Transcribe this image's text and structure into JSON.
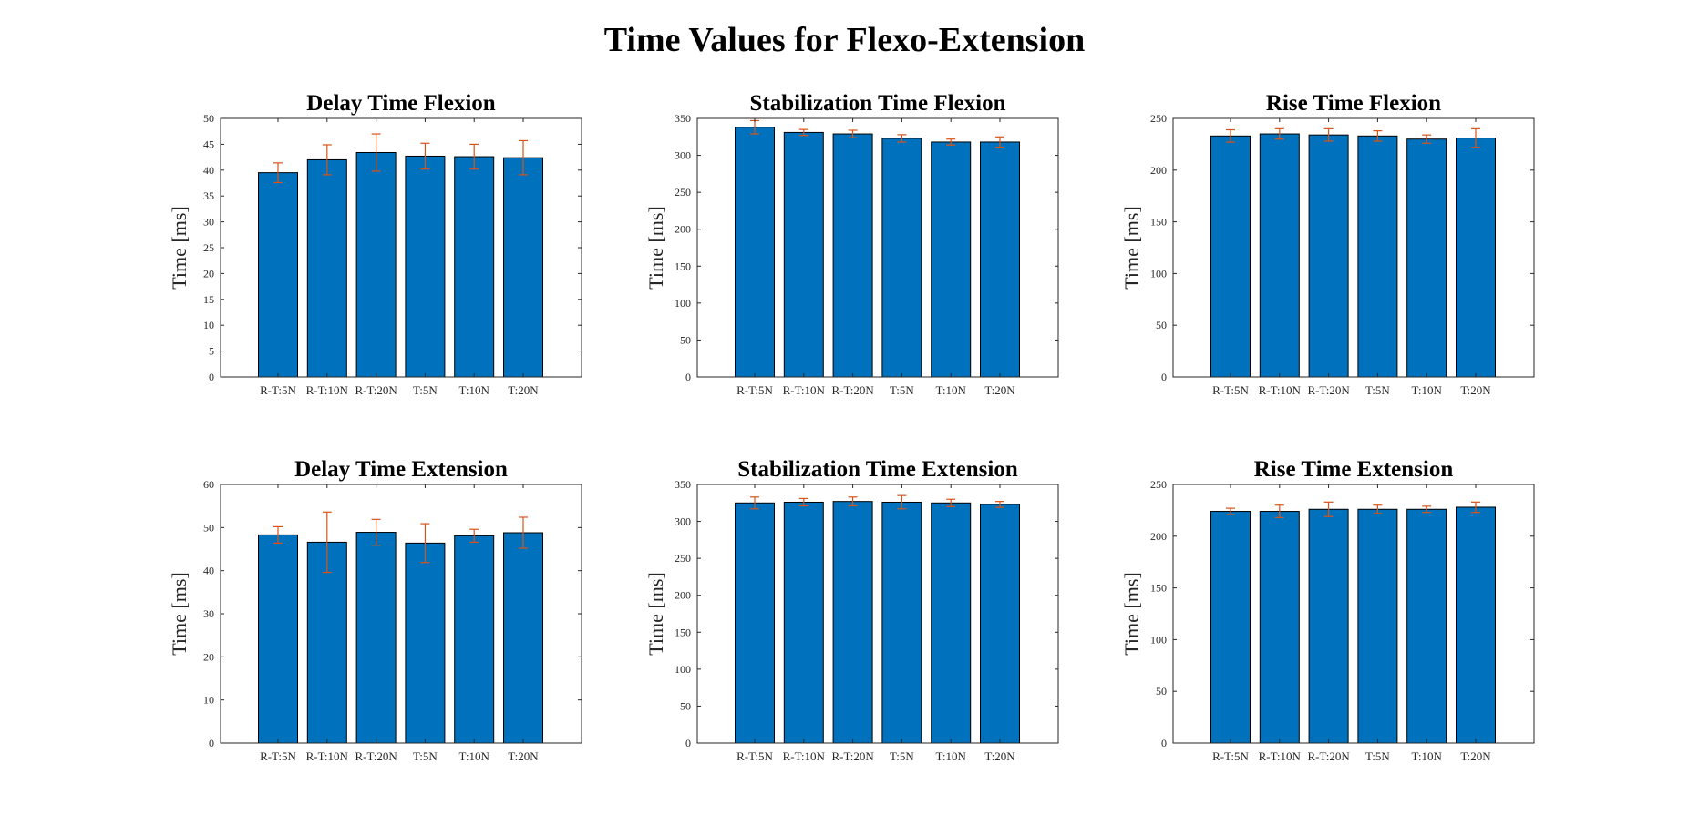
{
  "title": "Time Values for Flexo-Extension",
  "colors": {
    "bar": "#0072BD",
    "error_bar": "#D95319",
    "axis": "#262626"
  },
  "chart_data": [
    {
      "type": "bar",
      "title": "Delay Time Flexion",
      "ylabel": "Time [ms]",
      "categories": [
        "R-T:5N",
        "R-T:10N",
        "R-T:20N",
        "T:5N",
        "T:10N",
        "T:20N"
      ],
      "values": [
        39.5,
        42.0,
        43.4,
        42.7,
        42.6,
        42.4
      ],
      "error": [
        1.9,
        2.9,
        3.6,
        2.5,
        2.4,
        3.3
      ],
      "ylim": [
        0,
        50
      ],
      "yticks": [
        0,
        5,
        10,
        15,
        20,
        25,
        30,
        35,
        40,
        45,
        50
      ]
    },
    {
      "type": "bar",
      "title": "Stabilization Time Flexion",
      "ylabel": "Time [ms]",
      "categories": [
        "R-T:5N",
        "R-T:10N",
        "R-T:20N",
        "T:5N",
        "T:10N",
        "T:20N"
      ],
      "values": [
        338,
        331,
        329,
        323,
        318,
        318
      ],
      "error": [
        9,
        4,
        5,
        5,
        4,
        7
      ],
      "ylim": [
        0,
        350
      ],
      "yticks": [
        0,
        50,
        100,
        150,
        200,
        250,
        300,
        350
      ]
    },
    {
      "type": "bar",
      "title": "Rise Time Flexion",
      "ylabel": "Time [ms]",
      "categories": [
        "R-T:5N",
        "R-T:10N",
        "R-T:20N",
        "T:5N",
        "T:10N",
        "T:20N"
      ],
      "values": [
        233,
        235,
        234,
        233,
        230,
        231
      ],
      "error": [
        6,
        5,
        6,
        5,
        4,
        9
      ],
      "ylim": [
        0,
        250
      ],
      "yticks": [
        0,
        50,
        100,
        150,
        200,
        250
      ]
    },
    {
      "type": "bar",
      "title": "Delay Time Extension",
      "ylabel": "Time [ms]",
      "categories": [
        "R-T:5N",
        "R-T:10N",
        "R-T:20N",
        "T:5N",
        "T:10N",
        "T:20N"
      ],
      "values": [
        48.3,
        46.6,
        48.9,
        46.4,
        48.1,
        48.8
      ],
      "error": [
        1.9,
        7.0,
        3.0,
        4.5,
        1.5,
        3.6
      ],
      "ylim": [
        0,
        60
      ],
      "yticks": [
        0,
        10,
        20,
        30,
        40,
        50,
        60
      ]
    },
    {
      "type": "bar",
      "title": "Stabilization Time Extension",
      "ylabel": "Time [ms]",
      "categories": [
        "R-T:5N",
        "R-T:10N",
        "R-T:20N",
        "T:5N",
        "T:10N",
        "T:20N"
      ],
      "values": [
        325,
        326,
        327,
        326,
        325,
        323
      ],
      "error": [
        8,
        5,
        6,
        9,
        5,
        4
      ],
      "ylim": [
        0,
        350
      ],
      "yticks": [
        0,
        50,
        100,
        150,
        200,
        250,
        300,
        350
      ]
    },
    {
      "type": "bar",
      "title": "Rise Time Extension",
      "ylabel": "Time [ms]",
      "categories": [
        "R-T:5N",
        "R-T:10N",
        "R-T:20N",
        "T:5N",
        "T:10N",
        "T:20N"
      ],
      "values": [
        224,
        224,
        226,
        226,
        226,
        228
      ],
      "error": [
        3,
        6,
        7,
        4,
        3,
        5
      ],
      "ylim": [
        0,
        250
      ],
      "yticks": [
        0,
        50,
        100,
        150,
        200,
        250
      ]
    }
  ]
}
